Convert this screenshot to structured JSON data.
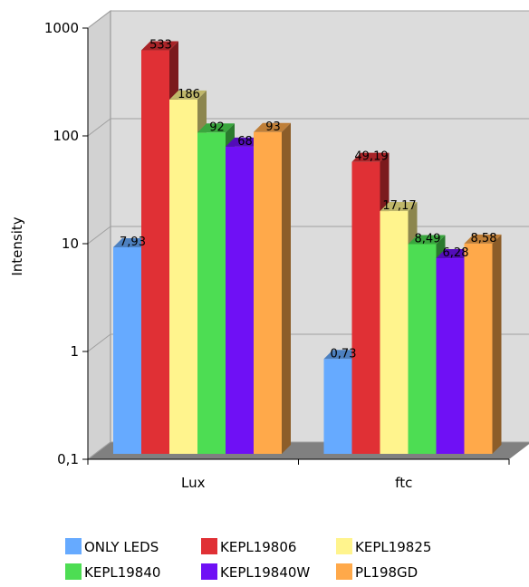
{
  "chart_data": {
    "type": "bar",
    "title": "",
    "xlabel": "",
    "ylabel": "Intensity",
    "y_scale": "log",
    "ylim": [
      0.1,
      1000
    ],
    "y_ticks": [
      {
        "value": 0.1,
        "label": "0,1"
      },
      {
        "value": 1,
        "label": "1"
      },
      {
        "value": 10,
        "label": "10"
      },
      {
        "value": 100,
        "label": "100"
      },
      {
        "value": 1000,
        "label": "1000"
      }
    ],
    "grid": true,
    "style": "3d",
    "legend_position": "bottom",
    "categories": [
      "Lux",
      "ftc"
    ],
    "series": [
      {
        "name": "ONLY LEDS",
        "color": "#66aaff",
        "values": [
          7.93,
          0.73
        ],
        "labels": [
          "7,93",
          "0,73"
        ]
      },
      {
        "name": "KEPL19806",
        "color": "#e03035",
        "values": [
          533,
          49.19
        ],
        "labels": [
          "533",
          "49,19"
        ]
      },
      {
        "name": "KEPL19825",
        "color": "#fff48d",
        "values": [
          186,
          17.17
        ],
        "labels": [
          "186",
          "17,17"
        ]
      },
      {
        "name": "KEPL19840",
        "color": "#4ddd53",
        "values": [
          92,
          8.49
        ],
        "labels": [
          "92",
          "8,49"
        ]
      },
      {
        "name": "KEPL19840W",
        "color": "#6f10f5",
        "values": [
          68,
          6.28
        ],
        "labels": [
          "68",
          "6,28"
        ]
      },
      {
        "name": "PL198GD",
        "color": "#ffa94a",
        "values": [
          93,
          8.58
        ],
        "labels": [
          "93",
          "8,58"
        ]
      }
    ]
  }
}
